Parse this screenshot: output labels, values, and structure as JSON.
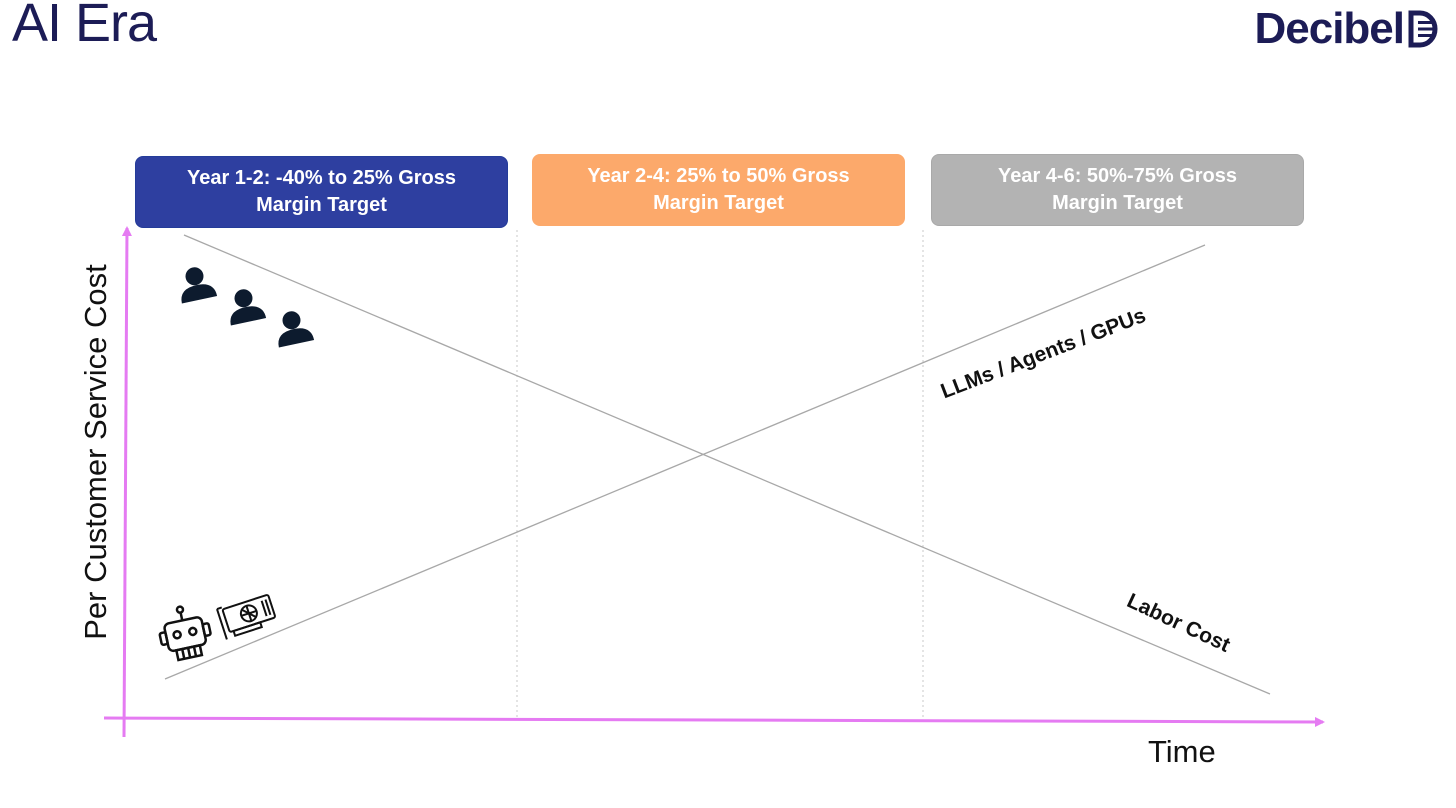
{
  "slide": {
    "title": "AI Era",
    "logo_text": "Decibel"
  },
  "phases": [
    {
      "line1": "Year 1-2: -40% to 25% Gross",
      "line2": "Margin Target",
      "color": "#2e3fa0"
    },
    {
      "line1": "Year 2-4: 25% to 50% Gross",
      "line2": "Margin Target",
      "color": "#fca96b"
    },
    {
      "line1": "Year 4-6: 50%-75% Gross",
      "line2": "Margin Target",
      "color": "#b3b3b3"
    }
  ],
  "axes": {
    "y_label": "Per Customer Service Cost",
    "x_label": "Time",
    "axis_color": "#e57bf2"
  },
  "lines": {
    "ai_label": "LLMs / Agents / GPUs",
    "labor_label": "Labor Cost",
    "line_color": "#a8a8a8"
  },
  "icons": {
    "labor": "people-icon",
    "ai": [
      "robot-icon",
      "gpu-icon"
    ]
  },
  "colors": {
    "title": "#1c1c56"
  }
}
